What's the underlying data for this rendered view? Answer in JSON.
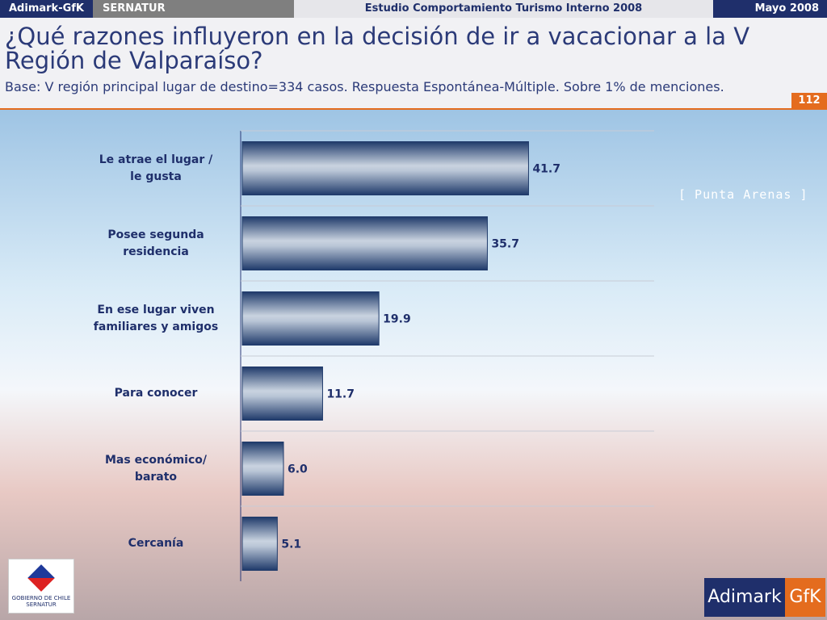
{
  "header": {
    "left": "Adimark-GfK",
    "client": "SERNATUR",
    "study": "Estudio Comportamiento Turismo Interno 2008",
    "date": "Mayo 2008"
  },
  "page_number": "112",
  "background_texts": [
    "[ Punta Arenas ]"
  ],
  "logos": {
    "gobierno": "GOBIERNO DE CHILE",
    "sernatur": "SERNATUR",
    "adimark": "Adimark",
    "gfk": "GfK"
  },
  "chart_data": {
    "type": "barh",
    "title": "¿Qué razones influyeron en la decisión de ir a vacacionar a la V Región de Valparaíso?",
    "subtitle": "Base: V región principal lugar de destino=334 casos.  Respuesta Espontánea-Múltiple. Sobre 1% de menciones.",
    "categories": [
      "Le atrae el lugar /\nle gusta",
      "Posee segunda\nresidencia",
      "En ese lugar viven\nfamiliares y amigos",
      "Para conocer",
      "Mas económico/\nbarato",
      "Cercanía"
    ],
    "values": [
      41.7,
      35.7,
      19.9,
      11.7,
      6.0,
      5.1
    ],
    "value_labels": [
      "41.7",
      "35.7",
      "19.9",
      "11.7",
      "6.0",
      "5.1"
    ],
    "color": "#1f3a6a",
    "xlim": [
      0,
      60
    ]
  }
}
